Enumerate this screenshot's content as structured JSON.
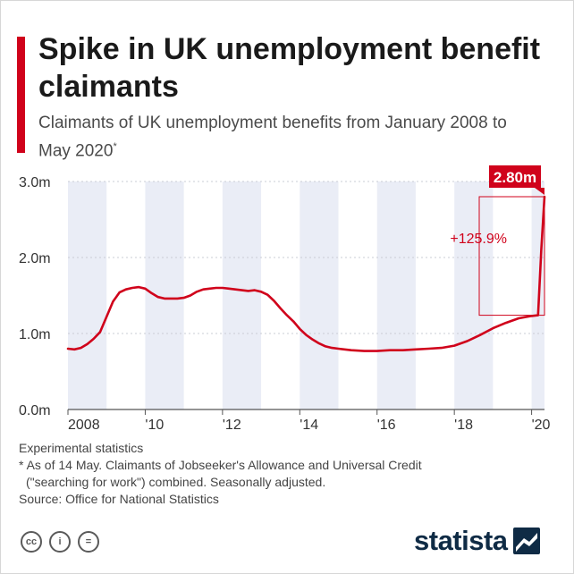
{
  "header": {
    "title": "Spike in UK unemployment benefit claimants",
    "subtitle": "Claimants of UK unemployment benefits from January 2008 to May 2020",
    "subtitle_marker": "*"
  },
  "chart_data": {
    "type": "line",
    "title": "Spike in UK unemployment benefit claimants",
    "subtitle": "Claimants of UK unemployment benefits from January 2008 to May 2020*",
    "xlabel": "",
    "ylabel": "",
    "x_range": [
      "2008-01",
      "2020-05"
    ],
    "ylim": [
      0,
      3.0
    ],
    "y_ticks": [
      "0.0m",
      "1.0m",
      "2.0m",
      "3.0m"
    ],
    "x_ticks": [
      {
        "date": "2008-01",
        "label": "2008"
      },
      {
        "date": "2010-01",
        "label": "'10"
      },
      {
        "date": "2012-01",
        "label": "'12"
      },
      {
        "date": "2014-01",
        "label": "'14"
      },
      {
        "date": "2016-01",
        "label": "'16"
      },
      {
        "date": "2018-01",
        "label": "'18"
      },
      {
        "date": "2020-01",
        "label": "'20"
      }
    ],
    "grid": true,
    "color": "#d0021b",
    "series": [
      {
        "unit": "million",
        "points": [
          [
            "2008-01",
            0.8
          ],
          [
            "2008-03",
            0.79
          ],
          [
            "2008-05",
            0.81
          ],
          [
            "2008-07",
            0.86
          ],
          [
            "2008-09",
            0.93
          ],
          [
            "2008-11",
            1.02
          ],
          [
            "2009-01",
            1.22
          ],
          [
            "2009-03",
            1.42
          ],
          [
            "2009-05",
            1.54
          ],
          [
            "2009-07",
            1.58
          ],
          [
            "2009-09",
            1.6
          ],
          [
            "2009-11",
            1.61
          ],
          [
            "2010-01",
            1.59
          ],
          [
            "2010-03",
            1.53
          ],
          [
            "2010-05",
            1.48
          ],
          [
            "2010-07",
            1.46
          ],
          [
            "2010-09",
            1.46
          ],
          [
            "2010-11",
            1.46
          ],
          [
            "2011-01",
            1.47
          ],
          [
            "2011-03",
            1.5
          ],
          [
            "2011-05",
            1.55
          ],
          [
            "2011-07",
            1.58
          ],
          [
            "2011-09",
            1.59
          ],
          [
            "2011-11",
            1.6
          ],
          [
            "2012-01",
            1.6
          ],
          [
            "2012-03",
            1.59
          ],
          [
            "2012-05",
            1.58
          ],
          [
            "2012-07",
            1.57
          ],
          [
            "2012-09",
            1.56
          ],
          [
            "2012-11",
            1.57
          ],
          [
            "2013-01",
            1.55
          ],
          [
            "2013-03",
            1.51
          ],
          [
            "2013-05",
            1.43
          ],
          [
            "2013-07",
            1.33
          ],
          [
            "2013-09",
            1.24
          ],
          [
            "2013-11",
            1.16
          ],
          [
            "2014-01",
            1.06
          ],
          [
            "2014-03",
            0.98
          ],
          [
            "2014-05",
            0.92
          ],
          [
            "2014-07",
            0.87
          ],
          [
            "2014-09",
            0.83
          ],
          [
            "2014-11",
            0.81
          ],
          [
            "2015-01",
            0.8
          ],
          [
            "2015-05",
            0.78
          ],
          [
            "2015-09",
            0.77
          ],
          [
            "2016-01",
            0.77
          ],
          [
            "2016-05",
            0.78
          ],
          [
            "2016-09",
            0.78
          ],
          [
            "2017-01",
            0.79
          ],
          [
            "2017-05",
            0.8
          ],
          [
            "2017-09",
            0.81
          ],
          [
            "2018-01",
            0.84
          ],
          [
            "2018-05",
            0.9
          ],
          [
            "2018-09",
            0.98
          ],
          [
            "2019-01",
            1.07
          ],
          [
            "2019-05",
            1.14
          ],
          [
            "2019-09",
            1.2
          ],
          [
            "2020-01",
            1.23
          ],
          [
            "2020-03",
            1.24
          ],
          [
            "2020-04",
            2.1
          ],
          [
            "2020-05",
            2.8
          ]
        ]
      }
    ],
    "annotations": [
      {
        "text": "2.80m",
        "date": "2020-05",
        "value": 2.8
      },
      {
        "text": "+125.9%",
        "from_value": 1.24,
        "to_value": 2.8
      }
    ]
  },
  "footer": {
    "note1": "Experimental statistics",
    "note2": "* As of 14 May. Claimants of Jobseeker's Allowance and Universal Credit",
    "note3": "(\"searching for work\") combined. Seasonally adjusted.",
    "source": "Source: Office for National Statistics"
  },
  "license_icons": [
    "creative-commons-icon",
    "attribution-icon",
    "no-derivatives-icon"
  ],
  "license_icon_glyphs": [
    "cc",
    "i",
    "="
  ],
  "brand": {
    "name": "statista"
  },
  "colors": {
    "accent": "#d0021b",
    "band": "#eaedf6",
    "brand": "#0f2b45"
  }
}
